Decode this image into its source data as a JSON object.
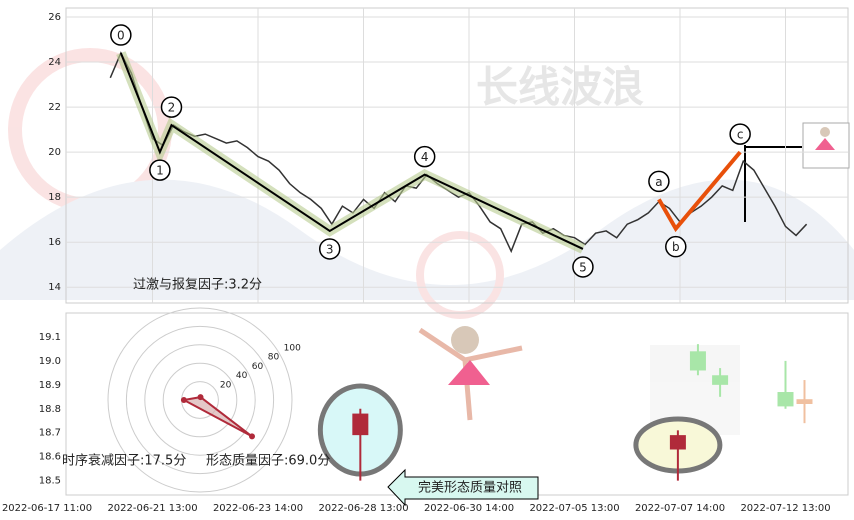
{
  "watermark": "长线波浪",
  "callout": "完美形态质量对照",
  "chart_data": [
    {
      "type": "line",
      "color": "#333333",
      "categories": [
        "2022-06-17 11:00",
        null,
        null,
        null,
        null,
        null,
        null,
        null,
        null,
        null,
        "2022-06-21 13:00",
        null,
        null,
        null,
        null,
        null,
        null,
        null,
        null,
        null,
        "2022-06-23 14:00",
        null,
        null,
        null,
        null,
        null,
        null,
        null,
        null,
        null,
        "2022-06-28 13:00",
        null,
        null,
        null,
        null,
        null,
        null,
        null,
        null,
        null,
        "2022-06-30 14:00",
        null,
        null,
        null,
        null,
        null,
        null,
        null,
        null,
        null,
        "2022-07-05 13:00",
        null,
        null,
        null,
        null,
        null,
        null,
        null,
        null,
        null,
        "2022-07-07 14:00",
        null,
        null,
        null,
        null,
        null,
        null,
        null,
        null,
        null,
        "2022-07-12 13:00",
        null,
        null
      ],
      "values": [
        null,
        null,
        null,
        null,
        null,
        null,
        23.3,
        24.4,
        23.5,
        22.0,
        20.6,
        20.3,
        21.2,
        20.9,
        20.7,
        20.8,
        20.6,
        20.4,
        20.5,
        20.2,
        19.8,
        19.6,
        19.2,
        18.6,
        18.2,
        17.9,
        17.5,
        16.8,
        17.6,
        17.3,
        17.9,
        17.5,
        18.2,
        17.8,
        18.5,
        18.4,
        19.0,
        18.6,
        18.3,
        18.0,
        18.2,
        17.6,
        16.9,
        16.6,
        15.6,
        16.8,
        16.9,
        16.4,
        16.6,
        16.3,
        16.2,
        15.9,
        16.4,
        16.5,
        16.2,
        16.8,
        17.0,
        17.3,
        17.8,
        17.5,
        16.9,
        17.3,
        17.6,
        18.0,
        18.5,
        18.3,
        19.6,
        19.2,
        18.4,
        17.6,
        16.7,
        16.3,
        16.8
      ],
      "ylim": [
        13.3,
        26.4
      ],
      "yticks": [
        14,
        16,
        18,
        20,
        22,
        24,
        26
      ],
      "grid": true,
      "waves": [
        {
          "label": "0",
          "x": 7,
          "y": 24.4,
          "group": "impulse"
        },
        {
          "label": "1",
          "x": 10.7,
          "y": 20.0,
          "group": "impulse"
        },
        {
          "label": "2",
          "x": 11.8,
          "y": 21.2,
          "group": "impulse"
        },
        {
          "label": "3",
          "x": 26.8,
          "y": 16.5,
          "group": "impulse"
        },
        {
          "label": "4",
          "x": 35.8,
          "y": 19.0,
          "group": "impulse"
        },
        {
          "label": "5",
          "x": 50.8,
          "y": 15.7,
          "group": "impulse"
        },
        {
          "label": "a",
          "x": 58,
          "y": 17.9,
          "group": "correction"
        },
        {
          "label": "b",
          "x": 59.6,
          "y": 16.6,
          "group": "correction"
        },
        {
          "label": "c",
          "x": 65.7,
          "y": 20.0,
          "group": "correction"
        }
      ]
    },
    {
      "type": "candlestick",
      "ylim": [
        18.44,
        19.2
      ],
      "yticks": [
        18.5,
        18.6,
        18.7,
        18.8,
        18.9,
        {
          "value": 19,
          "label": "19.0"
        },
        19.1
      ],
      "candles": [
        {
          "x": 29.7,
          "open": 18.69,
          "close": 18.78,
          "high": 18.8,
          "low": 18.5,
          "color": "#b02a3a"
        },
        {
          "x": 59.8,
          "open": 18.63,
          "close": 18.69,
          "high": 18.71,
          "low": 18.5,
          "color": "#b02a3a"
        },
        {
          "x": 61.7,
          "open": 18.96,
          "close": 19.04,
          "high": 19.07,
          "low": 18.94,
          "color": "#a8e6a8"
        },
        {
          "x": 63.8,
          "open": 18.9,
          "close": 18.94,
          "high": 18.97,
          "low": 18.85,
          "color": "#a8e6a8"
        },
        {
          "x": 70,
          "open": 18.81,
          "close": 18.87,
          "high": 19.0,
          "low": 18.8,
          "color": "#a8e6a8"
        },
        {
          "x": 71.8,
          "open": 18.82,
          "close": 18.84,
          "high": 18.92,
          "low": 18.74,
          "color": "#f0c0a0"
        }
      ]
    },
    {
      "type": "radar",
      "rlim": [
        0,
        100
      ],
      "rticks": [
        20,
        40,
        60,
        80,
        100
      ],
      "color": "#b02a3a",
      "axes": [
        {
          "label": "过激与报复因子:3.2分",
          "value": 3.2,
          "angle": -80
        },
        {
          "label": "时序衰减因子:17.5分",
          "value": 17.5,
          "angle": 180
        },
        {
          "label": "形态质量因子:69.0分",
          "value": 69.0,
          "angle": 35
        }
      ]
    }
  ]
}
